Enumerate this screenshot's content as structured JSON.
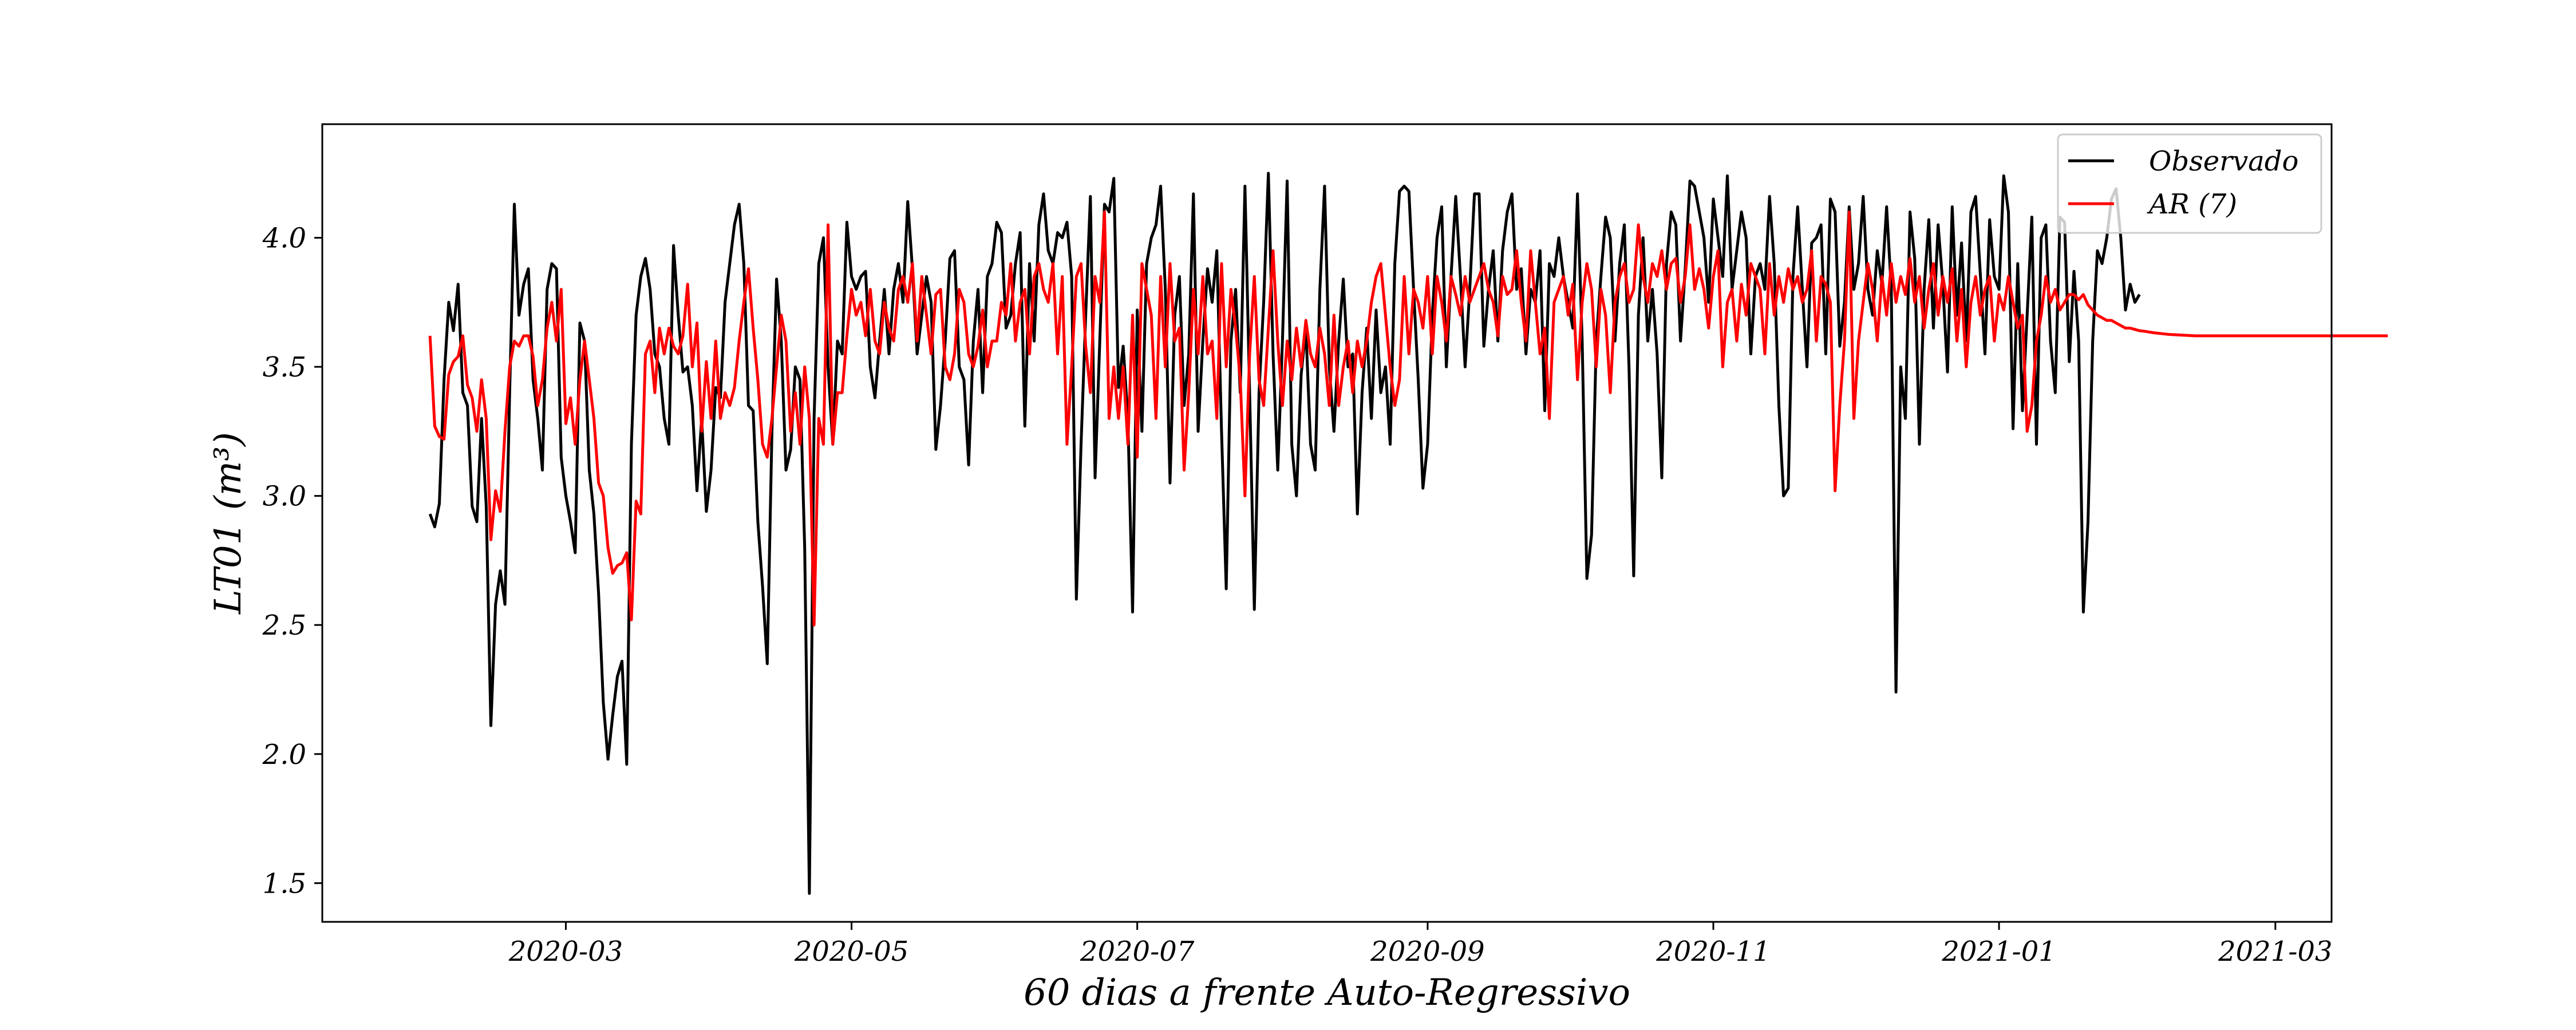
{
  "chart_data": {
    "type": "line",
    "title": "",
    "xlabel": "60 dias a frente Auto-Regressivo",
    "ylabel": "LT01 (m³)",
    "xlim": [
      "2020-01-09",
      "2021-03-13"
    ],
    "ylim": [
      1.35,
      4.44
    ],
    "x_ticks": [
      "2020-03-01",
      "2020-05-01",
      "2020-07-01",
      "2020-09-01",
      "2020-11-01",
      "2021-01-01",
      "2021-03-01"
    ],
    "x_tick_labels": [
      "2020-03",
      "2020-05",
      "2020-07",
      "2020-09",
      "2020-11",
      "2021-01",
      "2021-03"
    ],
    "y_ticks": [
      1.5,
      2.0,
      2.5,
      3.0,
      3.5,
      4.0
    ],
    "y_tick_labels": [
      "1.5",
      "2.0",
      "2.5",
      "3.0",
      "3.5",
      "4.0"
    ],
    "grid": false,
    "legend_position": "top-right",
    "legend": [
      "Observado",
      "AR (7)"
    ],
    "series": [
      {
        "name": "Observado",
        "color": "#000000",
        "start_date": "2020-02-01",
        "values": [
          2.93,
          2.88,
          2.97,
          3.45,
          3.75,
          3.64,
          3.82,
          3.4,
          3.35,
          2.96,
          2.9,
          3.3,
          2.96,
          2.11,
          2.58,
          2.71,
          2.58,
          3.4,
          4.13,
          3.7,
          3.82,
          3.88,
          3.45,
          3.3,
          3.1,
          3.8,
          3.9,
          3.88,
          3.15,
          3.0,
          2.9,
          2.78,
          3.67,
          3.6,
          3.1,
          2.93,
          2.62,
          2.2,
          1.98,
          2.15,
          2.3,
          2.36,
          1.96,
          3.2,
          3.7,
          3.85,
          3.92,
          3.8,
          3.55,
          3.5,
          3.3,
          3.2,
          3.97,
          3.7,
          3.48,
          3.5,
          3.35,
          3.02,
          3.3,
          2.94,
          3.1,
          3.42,
          3.38,
          3.75,
          3.9,
          4.05,
          4.13,
          3.9,
          3.35,
          3.33,
          2.9,
          2.65,
          2.35,
          3.25,
          3.84,
          3.6,
          3.1,
          3.18,
          3.5,
          3.45,
          2.8,
          1.46,
          3.3,
          3.9,
          4.0,
          3.5,
          3.2,
          3.6,
          3.55,
          4.06,
          3.85,
          3.8,
          3.85,
          3.87,
          3.5,
          3.38,
          3.6,
          3.8,
          3.55,
          3.8,
          3.9,
          3.75,
          4.14,
          3.88,
          3.55,
          3.7,
          3.85,
          3.75,
          3.18,
          3.35,
          3.6,
          3.92,
          3.95,
          3.5,
          3.45,
          3.12,
          3.6,
          3.8,
          3.4,
          3.85,
          3.9,
          4.06,
          4.02,
          3.65,
          3.7,
          3.9,
          4.02,
          3.27,
          3.9,
          3.6,
          4.05,
          4.17,
          3.95,
          3.9,
          4.02,
          4.0,
          4.06,
          3.85,
          2.6,
          3.2,
          3.7,
          4.16,
          3.07,
          3.6,
          4.13,
          4.1,
          4.23,
          3.42,
          3.58,
          3.3,
          2.55,
          3.72,
          3.25,
          3.9,
          4.0,
          4.05,
          4.2,
          3.8,
          3.05,
          3.7,
          3.85,
          3.35,
          3.55,
          4.17,
          3.25,
          3.6,
          3.88,
          3.75,
          3.95,
          3.25,
          2.64,
          3.6,
          3.8,
          3.4,
          4.2,
          3.4,
          2.56,
          3.4,
          3.75,
          4.25,
          3.55,
          3.1,
          3.6,
          4.22,
          3.2,
          3.0,
          3.47,
          3.65,
          3.2,
          3.1,
          3.8,
          4.2,
          3.5,
          3.25,
          3.6,
          3.84,
          3.5,
          3.55,
          2.93,
          3.4,
          3.65,
          3.3,
          3.72,
          3.4,
          3.5,
          3.2,
          3.9,
          4.18,
          4.2,
          4.18,
          3.8,
          3.45,
          3.03,
          3.2,
          3.7,
          4.0,
          4.12,
          3.5,
          3.85,
          4.16,
          3.85,
          3.5,
          3.8,
          4.17,
          4.17,
          3.58,
          3.8,
          3.95,
          3.6,
          3.95,
          4.1,
          4.17,
          3.8,
          3.88,
          3.55,
          3.8,
          3.75,
          3.95,
          3.33,
          3.9,
          3.85,
          4.0,
          3.85,
          3.75,
          3.65,
          4.17,
          3.6,
          2.68,
          2.85,
          3.6,
          3.85,
          4.08,
          4.0,
          3.6,
          3.9,
          4.05,
          3.5,
          2.69,
          3.7,
          4.0,
          3.6,
          3.8,
          3.55,
          3.07,
          3.9,
          4.1,
          4.05,
          3.6,
          3.88,
          4.22,
          4.2,
          4.1,
          4.0,
          3.75,
          4.15,
          4.0,
          3.85,
          4.24,
          3.8,
          3.95,
          4.1,
          4.0,
          3.55,
          3.85,
          3.9,
          3.8,
          4.16,
          3.9,
          3.35,
          3.0,
          3.03,
          3.85,
          4.12,
          3.8,
          3.5,
          3.98,
          4.0,
          4.05,
          3.55,
          4.15,
          4.1,
          3.58,
          3.75,
          4.12,
          3.8,
          3.9,
          4.16,
          3.8,
          3.7,
          3.95,
          3.82,
          4.12,
          3.8,
          2.24,
          3.5,
          3.3,
          4.1,
          3.92,
          3.2,
          3.8,
          4.07,
          3.65,
          4.05,
          3.82,
          3.48,
          4.12,
          3.7,
          3.98,
          3.6,
          4.1,
          4.16,
          3.86,
          3.55,
          4.07,
          3.85,
          3.8,
          4.24,
          4.1,
          3.26,
          3.9,
          3.33,
          3.7,
          4.08,
          3.2,
          4.0,
          4.05,
          3.6,
          3.4,
          4.08,
          4.06,
          3.52,
          3.87,
          3.6,
          2.55,
          2.9,
          3.6,
          3.95,
          3.9,
          4.0,
          4.15,
          4.19,
          4.0,
          3.72,
          3.82,
          3.75,
          3.78
        ]
      },
      {
        "name": "AR (7)",
        "color": "#ff0000",
        "start_date": "2020-02-01",
        "values": [
          3.62,
          3.27,
          3.23,
          3.22,
          3.47,
          3.52,
          3.54,
          3.62,
          3.43,
          3.38,
          3.25,
          3.45,
          3.3,
          2.83,
          3.02,
          2.94,
          3.25,
          3.5,
          3.6,
          3.58,
          3.62,
          3.62,
          3.54,
          3.35,
          3.45,
          3.65,
          3.75,
          3.6,
          3.8,
          3.28,
          3.38,
          3.2,
          3.45,
          3.6,
          3.45,
          3.3,
          3.05,
          3.0,
          2.8,
          2.7,
          2.73,
          2.74,
          2.78,
          2.52,
          2.98,
          2.93,
          3.55,
          3.6,
          3.4,
          3.65,
          3.55,
          3.65,
          3.58,
          3.55,
          3.62,
          3.82,
          3.5,
          3.67,
          3.25,
          3.52,
          3.3,
          3.6,
          3.3,
          3.4,
          3.35,
          3.42,
          3.6,
          3.75,
          3.88,
          3.65,
          3.45,
          3.2,
          3.15,
          3.3,
          3.5,
          3.7,
          3.6,
          3.25,
          3.4,
          3.2,
          3.5,
          3.3,
          2.5,
          3.3,
          3.2,
          4.05,
          3.2,
          3.4,
          3.4,
          3.62,
          3.8,
          3.7,
          3.75,
          3.62,
          3.8,
          3.6,
          3.55,
          3.75,
          3.65,
          3.6,
          3.8,
          3.85,
          3.75,
          3.9,
          3.6,
          3.85,
          3.7,
          3.55,
          3.78,
          3.8,
          3.5,
          3.45,
          3.55,
          3.8,
          3.75,
          3.55,
          3.5,
          3.58,
          3.72,
          3.5,
          3.6,
          3.6,
          3.75,
          3.7,
          3.9,
          3.6,
          3.75,
          3.8,
          3.55,
          3.85,
          3.9,
          3.8,
          3.75,
          3.9,
          3.55,
          3.85,
          3.2,
          3.5,
          3.85,
          3.9,
          3.58,
          3.4,
          3.85,
          3.75,
          4.1,
          3.3,
          3.5,
          3.3,
          3.5,
          3.2,
          3.7,
          3.15,
          3.9,
          3.8,
          3.7,
          3.3,
          3.85,
          3.5,
          3.9,
          3.6,
          3.65,
          3.1,
          3.4,
          3.8,
          3.55,
          3.85,
          3.55,
          3.6,
          3.3,
          3.9,
          3.5,
          3.8,
          3.65,
          3.45,
          3.0,
          3.55,
          3.85,
          3.45,
          3.35,
          3.65,
          3.95,
          3.6,
          3.35,
          3.6,
          3.45,
          3.65,
          3.5,
          3.68,
          3.55,
          3.5,
          3.65,
          3.55,
          3.35,
          3.7,
          3.35,
          3.5,
          3.6,
          3.4,
          3.6,
          3.5,
          3.6,
          3.75,
          3.85,
          3.9,
          3.7,
          3.5,
          3.35,
          3.45,
          3.85,
          3.55,
          3.8,
          3.75,
          3.65,
          3.85,
          3.55,
          3.85,
          3.75,
          3.6,
          3.85,
          3.78,
          3.7,
          3.85,
          3.75,
          3.8,
          3.85,
          3.9,
          3.8,
          3.75,
          3.62,
          3.85,
          3.78,
          3.8,
          3.95,
          3.75,
          3.6,
          3.95,
          3.75,
          3.55,
          3.65,
          3.3,
          3.75,
          3.8,
          3.85,
          3.7,
          3.82,
          3.45,
          3.75,
          3.9,
          3.8,
          3.5,
          3.8,
          3.7,
          3.4,
          3.75,
          3.85,
          3.9,
          3.75,
          3.8,
          4.05,
          3.85,
          3.75,
          3.9,
          3.85,
          3.95,
          3.8,
          3.9,
          3.92,
          3.75,
          3.85,
          4.05,
          3.8,
          3.88,
          3.8,
          3.65,
          3.85,
          3.95,
          3.5,
          3.75,
          3.8,
          3.6,
          3.82,
          3.7,
          3.9,
          3.85,
          3.8,
          3.55,
          3.9,
          3.7,
          3.85,
          3.75,
          3.88,
          3.8,
          3.85,
          3.75,
          3.8,
          3.95,
          3.6,
          3.85,
          3.82,
          3.75,
          3.02,
          3.35,
          3.6,
          4.1,
          3.3,
          3.6,
          3.75,
          3.9,
          3.8,
          3.6,
          3.85,
          3.7,
          3.9,
          3.75,
          3.85,
          3.78,
          3.92,
          3.75,
          3.85,
          3.65,
          3.8,
          3.9,
          3.7,
          3.85,
          3.75,
          3.88,
          3.6,
          3.8,
          3.5,
          3.75,
          3.85,
          3.7,
          3.8,
          3.85,
          3.6,
          3.78,
          3.72,
          3.85,
          3.75,
          3.65,
          3.7,
          3.25,
          3.35,
          3.6,
          3.7,
          3.85,
          3.75,
          3.8,
          3.72,
          3.75,
          3.78,
          3.78,
          3.76,
          3.78,
          3.74,
          3.72,
          3.7,
          3.69,
          3.68,
          3.68,
          3.67,
          3.66,
          3.65,
          3.65,
          3.645,
          3.64,
          3.638,
          3.635,
          3.632,
          3.63,
          3.628,
          3.626,
          3.625,
          3.624,
          3.623,
          3.622,
          3.621,
          3.62,
          3.62,
          3.62,
          3.62,
          3.62,
          3.62,
          3.62,
          3.62,
          3.62,
          3.62,
          3.62,
          3.62,
          3.62,
          3.62,
          3.62,
          3.62,
          3.62,
          3.62,
          3.62,
          3.62,
          3.62,
          3.62,
          3.62,
          3.62,
          3.62,
          3.62,
          3.62,
          3.62,
          3.62,
          3.62,
          3.62,
          3.62,
          3.62,
          3.62,
          3.62,
          3.62,
          3.62,
          3.62,
          3.62,
          3.62,
          3.62,
          3.62
        ]
      }
    ]
  }
}
